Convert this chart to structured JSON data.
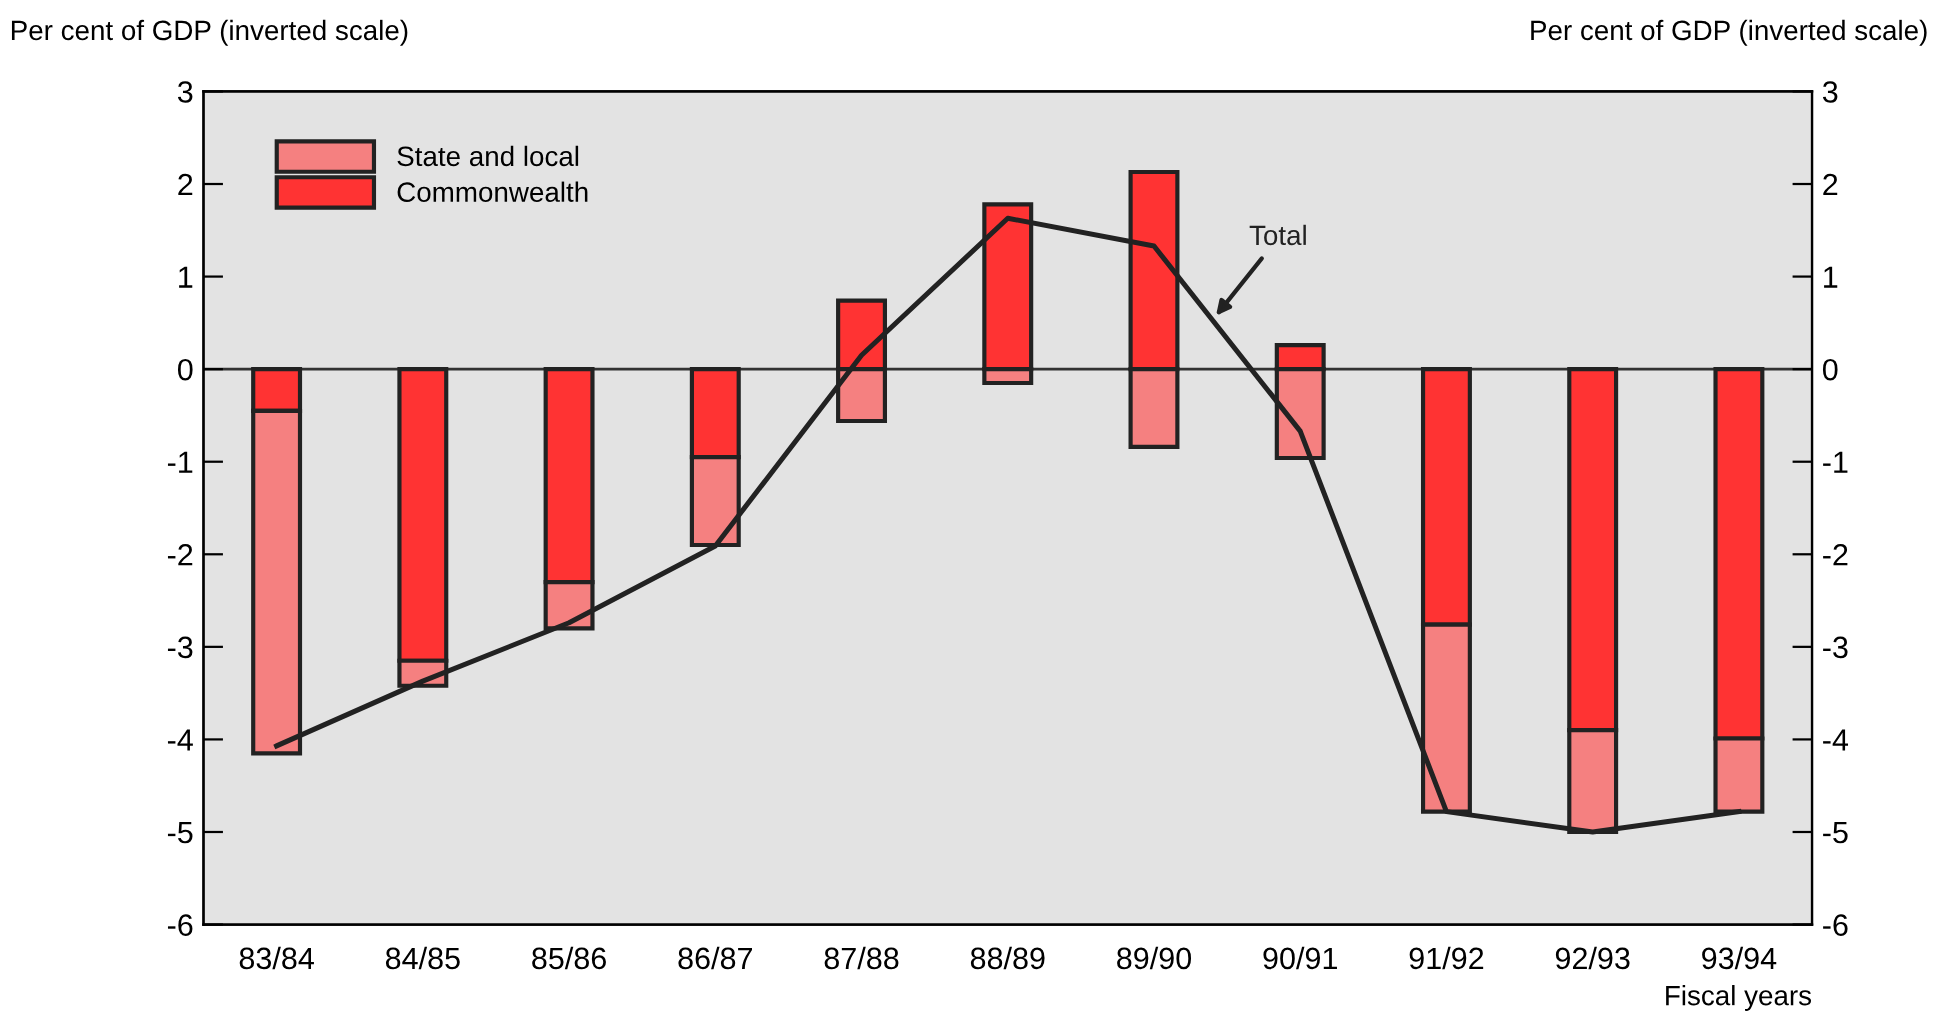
{
  "chart_data": {
    "type": "bar",
    "stacked": true,
    "ylabel": "Per cent of GDP (inverted scale)",
    "y2label": "Per cent of GDP (inverted scale)",
    "xlabel": "Fiscal years",
    "categories": [
      "83/84",
      "84/85",
      "85/86",
      "86/87",
      "87/88",
      "88/89",
      "89/90",
      "90/91",
      "91/92",
      "92/93",
      "93/94"
    ],
    "series": [
      {
        "name": "Commonwealth",
        "color": "#ff3333",
        "values": [
          -0.45,
          -3.15,
          -2.3,
          -0.95,
          0.74,
          1.78,
          2.13,
          0.26,
          -2.76,
          -3.9,
          -3.99
        ]
      },
      {
        "name": "State and local",
        "color": "#f58080",
        "values": [
          -3.7,
          -0.27,
          -0.5,
          -0.95,
          -0.56,
          -0.15,
          -0.84,
          -0.96,
          -2.02,
          -1.1,
          -0.79
        ]
      },
      {
        "name": "Total",
        "type": "line",
        "color": "#222222",
        "values": [
          -4.07,
          -3.37,
          -2.74,
          -1.91,
          0.15,
          1.63,
          1.33,
          -0.67,
          -4.78,
          -5.0,
          -4.78
        ]
      }
    ],
    "ylim": [
      -6,
      3
    ],
    "yticks": [
      -6,
      -5,
      -4,
      -3,
      -2,
      -1,
      0,
      1,
      2,
      3
    ],
    "y2lim": [
      -6,
      3
    ],
    "y2ticks": [
      -6,
      -5,
      -4,
      -3,
      -2,
      -1,
      0,
      1,
      2,
      3
    ],
    "ref_lines": [
      {
        "axis": "y",
        "value": 0,
        "color": "#333333"
      }
    ],
    "legend": "top left",
    "grid": false
  }
}
